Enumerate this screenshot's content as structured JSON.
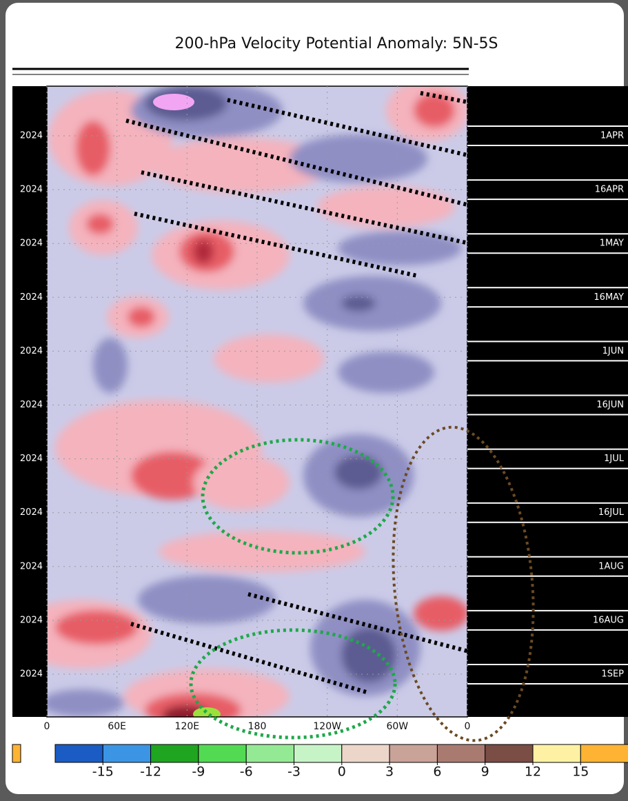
{
  "title": "200-hPa Velocity Potential Anomaly: 5N-5S",
  "y_axis": {
    "left_labels": [
      "2024",
      "2024",
      "2024",
      "2024",
      "2024",
      "2024",
      "2024",
      "2024",
      "2024",
      "2024",
      "2024"
    ],
    "right_labels": [
      "1APR",
      "16APR",
      "1MAY",
      "16MAY",
      "1JUN",
      "16JUN",
      "1JUL",
      "16JUL",
      "1AUG",
      "16AUG",
      "1SEP"
    ]
  },
  "x_axis": {
    "labels": [
      "0",
      "60E",
      "120E",
      "180",
      "120W",
      "60W",
      "0"
    ]
  },
  "colorbar": {
    "ticks": [
      -15,
      -12,
      -9,
      -6,
      -3,
      0,
      3,
      6,
      9,
      12,
      15
    ],
    "colors": [
      "#1a5cc4",
      "#3b95e4",
      "#1fa51f",
      "#52da52",
      "#94ea94",
      "#c7f4c7",
      "#ecd6ca",
      "#c9a298",
      "#a97b70",
      "#7a4d45",
      "#fff1a3",
      "#ffb332"
    ]
  }
}
